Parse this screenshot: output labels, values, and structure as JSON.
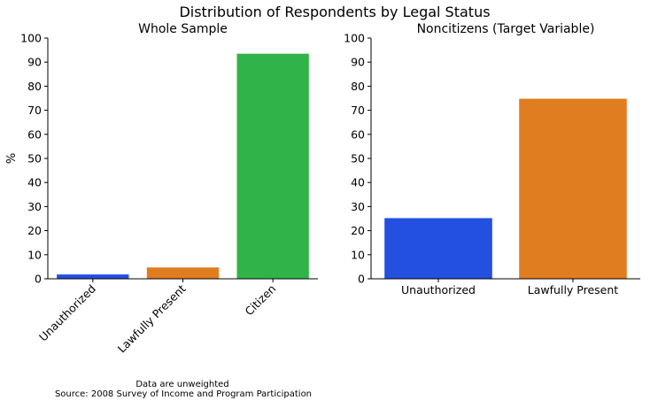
{
  "title": "Distribution of Respondents by Legal Status",
  "footnote": {
    "line1": "Data are unweighted",
    "line2": "Source: 2008 Survey of Income and Program Participation"
  },
  "chart_data": [
    {
      "type": "bar",
      "title": "Whole Sample",
      "xlabel": "",
      "ylabel": "%",
      "ylim": [
        0,
        100
      ],
      "yticks": [
        0,
        10,
        20,
        30,
        40,
        50,
        60,
        70,
        80,
        90,
        100
      ],
      "categories": [
        "Unauthorized",
        "Lawfully Present",
        "Citizen"
      ],
      "values": [
        1.8,
        4.7,
        93.5
      ],
      "colors": [
        "#2350e0",
        "#e07d20",
        "#30b44a"
      ],
      "tick_rotation": 45,
      "grid": false
    },
    {
      "type": "bar",
      "title": "Noncitizens (Target Variable)",
      "xlabel": "",
      "ylabel": "",
      "ylim": [
        0,
        100
      ],
      "yticks": [
        0,
        10,
        20,
        30,
        40,
        50,
        60,
        70,
        80,
        90,
        100
      ],
      "categories": [
        "Unauthorized",
        "Lawfully Present"
      ],
      "values": [
        25.2,
        74.8
      ],
      "colors": [
        "#2350e0",
        "#e07d20"
      ],
      "tick_rotation": 0,
      "grid": false
    }
  ]
}
